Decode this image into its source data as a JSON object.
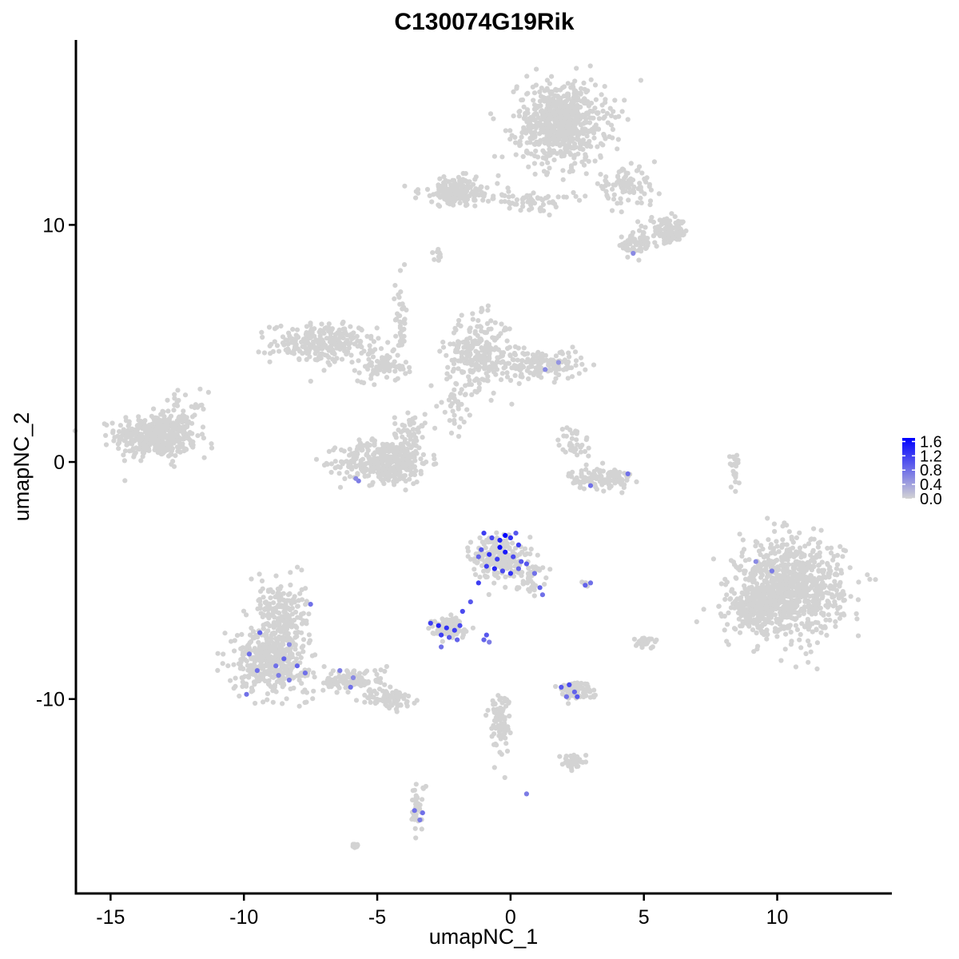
{
  "chart_data": {
    "type": "scatter",
    "title": "C130074G19Rik",
    "xlabel": "umapNC_1",
    "ylabel": "umapNC_2",
    "xlim": [
      -16.3,
      14.3
    ],
    "ylim": [
      -18.2,
      17.8
    ],
    "xticks": [
      -15,
      -10,
      -5,
      0,
      5,
      10
    ],
    "yticks": [
      -10,
      0,
      10
    ],
    "grid": false,
    "colors": {
      "low": "#d3d3d3",
      "high": "#0000ff",
      "axis": "#000000"
    },
    "color_scale": {
      "name": "",
      "min": 0.0,
      "max": 1.7,
      "labels": [
        "1.6",
        "1.2",
        "0.8",
        "0.4",
        "0.0"
      ],
      "values": [
        1.6,
        1.2,
        0.8,
        0.4,
        0.0
      ],
      "position": "right"
    },
    "clusters": [
      {
        "cx": -13.3,
        "cy": 1.1,
        "sx": 1.0,
        "sy": 0.6,
        "n": 420
      },
      {
        "cx": -12.3,
        "cy": 1.6,
        "sx": 0.6,
        "sy": 0.9,
        "n": 60
      },
      {
        "cx": -7.0,
        "cy": 5.0,
        "sx": 1.3,
        "sy": 0.55,
        "n": 260
      },
      {
        "cx": -4.8,
        "cy": 4.0,
        "sx": 0.6,
        "sy": 0.4,
        "n": 70
      },
      {
        "cx": -4.7,
        "cy": 0.0,
        "sx": 1.1,
        "sy": 0.6,
        "n": 380
      },
      {
        "cx": -3.8,
        "cy": 1.2,
        "sx": 0.4,
        "sy": 0.7,
        "n": 60
      },
      {
        "cx": -4.1,
        "cy": 6.0,
        "sx": 0.15,
        "sy": 1.2,
        "n": 40
      },
      {
        "cx": -1.2,
        "cy": 4.6,
        "sx": 0.8,
        "sy": 1.0,
        "n": 260
      },
      {
        "cx": 1.2,
        "cy": 4.1,
        "sx": 1.0,
        "sy": 0.4,
        "n": 140
      },
      {
        "cx": -2.1,
        "cy": 2.5,
        "sx": 0.3,
        "sy": 0.8,
        "n": 40
      },
      {
        "cx": 2.4,
        "cy": 0.8,
        "sx": 0.4,
        "sy": 0.5,
        "n": 40
      },
      {
        "cx": 3.4,
        "cy": -0.7,
        "sx": 0.8,
        "sy": 0.3,
        "n": 120
      },
      {
        "cx": 1.9,
        "cy": 14.3,
        "sx": 1.1,
        "sy": 1.1,
        "n": 700
      },
      {
        "cx": -1.9,
        "cy": 11.4,
        "sx": 1.0,
        "sy": 0.4,
        "n": 170
      },
      {
        "cx": 0.8,
        "cy": 11.0,
        "sx": 1.0,
        "sy": 0.25,
        "n": 60
      },
      {
        "cx": 4.3,
        "cy": 11.6,
        "sx": 0.8,
        "sy": 0.5,
        "n": 90
      },
      {
        "cx": 5.9,
        "cy": 9.7,
        "sx": 0.5,
        "sy": 0.35,
        "n": 110
      },
      {
        "cx": 4.7,
        "cy": 9.2,
        "sx": 0.4,
        "sy": 0.35,
        "n": 60
      },
      {
        "cx": -2.7,
        "cy": 8.7,
        "sx": 0.12,
        "sy": 0.15,
        "n": 10
      },
      {
        "cx": 10.5,
        "cy": -5.3,
        "sx": 1.3,
        "sy": 1.3,
        "n": 900
      },
      {
        "cx": 9.2,
        "cy": -6.2,
        "sx": 0.6,
        "sy": 0.6,
        "n": 200
      },
      {
        "cx": 8.4,
        "cy": -0.3,
        "sx": 0.12,
        "sy": 0.5,
        "n": 20
      },
      {
        "cx": -9.0,
        "cy": -8.3,
        "sx": 0.9,
        "sy": 0.9,
        "n": 430
      },
      {
        "cx": -8.6,
        "cy": -6.3,
        "sx": 0.6,
        "sy": 0.9,
        "n": 180
      },
      {
        "cx": -6.0,
        "cy": -9.2,
        "sx": 0.9,
        "sy": 0.35,
        "n": 120
      },
      {
        "cx": -4.5,
        "cy": -10.0,
        "sx": 0.6,
        "sy": 0.3,
        "n": 80
      },
      {
        "cx": -0.5,
        "cy": -4.0,
        "sx": 0.6,
        "sy": 0.6,
        "n": 200
      },
      {
        "cx": 0.7,
        "cy": -4.8,
        "sx": 0.35,
        "sy": 0.5,
        "n": 50
      },
      {
        "cx": -2.3,
        "cy": -7.0,
        "sx": 0.45,
        "sy": 0.25,
        "n": 110
      },
      {
        "cx": 2.4,
        "cy": -9.6,
        "sx": 0.45,
        "sy": 0.25,
        "n": 80
      },
      {
        "cx": -0.4,
        "cy": -11.0,
        "sx": 0.25,
        "sy": 0.9,
        "n": 90
      },
      {
        "cx": 2.4,
        "cy": -12.6,
        "sx": 0.3,
        "sy": 0.2,
        "n": 35
      },
      {
        "cx": -3.5,
        "cy": -14.6,
        "sx": 0.2,
        "sy": 0.7,
        "n": 40
      },
      {
        "cx": 5.0,
        "cy": -7.6,
        "sx": 0.3,
        "sy": 0.15,
        "n": 30
      },
      {
        "cx": -5.9,
        "cy": -16.2,
        "sx": 0.12,
        "sy": 0.1,
        "n": 8
      },
      {
        "cx": 2.8,
        "cy": -5.1,
        "sx": 0.1,
        "sy": 0.08,
        "n": 6
      }
    ],
    "expressing_points": [
      {
        "x": -1.0,
        "y": -3.0,
        "v": 1.2
      },
      {
        "x": -0.7,
        "y": -3.2,
        "v": 1.1
      },
      {
        "x": -0.4,
        "y": -3.3,
        "v": 1.4
      },
      {
        "x": -0.2,
        "y": -3.1,
        "v": 1.7
      },
      {
        "x": 0.0,
        "y": -3.2,
        "v": 1.3
      },
      {
        "x": 0.3,
        "y": -3.5,
        "v": 1.2
      },
      {
        "x": -1.1,
        "y": -3.7,
        "v": 1.0
      },
      {
        "x": -0.8,
        "y": -3.9,
        "v": 1.3
      },
      {
        "x": -0.5,
        "y": -4.1,
        "v": 1.2
      },
      {
        "x": -0.2,
        "y": -3.8,
        "v": 1.5
      },
      {
        "x": 0.1,
        "y": -4.0,
        "v": 1.1
      },
      {
        "x": 0.4,
        "y": -4.2,
        "v": 1.0
      },
      {
        "x": -0.9,
        "y": -4.4,
        "v": 1.2
      },
      {
        "x": -0.6,
        "y": -4.5,
        "v": 1.4
      },
      {
        "x": -0.3,
        "y": -4.6,
        "v": 1.1
      },
      {
        "x": 0.0,
        "y": -4.7,
        "v": 1.3
      },
      {
        "x": 0.3,
        "y": -4.5,
        "v": 0.9
      },
      {
        "x": 0.6,
        "y": -4.3,
        "v": 1.0
      },
      {
        "x": 0.9,
        "y": -4.7,
        "v": 0.8
      },
      {
        "x": 1.1,
        "y": -5.3,
        "v": 0.9
      },
      {
        "x": 1.2,
        "y": -5.6,
        "v": 0.8
      },
      {
        "x": -0.4,
        "y": -3.6,
        "v": 1.6
      },
      {
        "x": -1.2,
        "y": -4.0,
        "v": 0.9
      },
      {
        "x": 0.2,
        "y": -3.0,
        "v": 1.0
      },
      {
        "x": -1.2,
        "y": -5.1,
        "v": 1.2
      },
      {
        "x": -1.5,
        "y": -5.9,
        "v": 1.0
      },
      {
        "x": -1.8,
        "y": -6.3,
        "v": 1.1
      },
      {
        "x": -3.0,
        "y": -6.8,
        "v": 1.2
      },
      {
        "x": -2.7,
        "y": -6.9,
        "v": 1.4
      },
      {
        "x": -2.4,
        "y": -7.0,
        "v": 1.3
      },
      {
        "x": -2.1,
        "y": -7.1,
        "v": 1.2
      },
      {
        "x": -1.9,
        "y": -6.9,
        "v": 1.1
      },
      {
        "x": -2.6,
        "y": -7.3,
        "v": 1.2
      },
      {
        "x": -2.3,
        "y": -7.4,
        "v": 1.0
      },
      {
        "x": -2.0,
        "y": -7.5,
        "v": 0.9
      },
      {
        "x": -2.6,
        "y": -7.8,
        "v": 0.8
      },
      {
        "x": -1.0,
        "y": -7.5,
        "v": 0.9
      },
      {
        "x": -0.9,
        "y": -7.3,
        "v": 1.0
      },
      {
        "x": -0.8,
        "y": -7.6,
        "v": 0.7
      },
      {
        "x": 2.8,
        "y": -5.2,
        "v": 0.9
      },
      {
        "x": 3.0,
        "y": -5.1,
        "v": 0.8
      },
      {
        "x": 1.9,
        "y": -9.5,
        "v": 1.0
      },
      {
        "x": 2.2,
        "y": -9.4,
        "v": 1.1
      },
      {
        "x": 2.4,
        "y": -9.7,
        "v": 0.9
      },
      {
        "x": 2.1,
        "y": -9.9,
        "v": 0.8
      },
      {
        "x": 2.5,
        "y": -9.9,
        "v": 1.0
      },
      {
        "x": -9.8,
        "y": -8.1,
        "v": 0.8
      },
      {
        "x": -9.4,
        "y": -7.2,
        "v": 0.9
      },
      {
        "x": -8.8,
        "y": -8.6,
        "v": 0.8
      },
      {
        "x": -8.5,
        "y": -8.3,
        "v": 0.9
      },
      {
        "x": -8.3,
        "y": -9.2,
        "v": 0.7
      },
      {
        "x": -9.5,
        "y": -8.8,
        "v": 0.8
      },
      {
        "x": -8.0,
        "y": -8.6,
        "v": 0.9
      },
      {
        "x": -7.7,
        "y": -8.9,
        "v": 0.8
      },
      {
        "x": -8.7,
        "y": -9.0,
        "v": 0.7
      },
      {
        "x": -9.9,
        "y": -9.8,
        "v": 0.8
      },
      {
        "x": -8.3,
        "y": -7.7,
        "v": 0.6
      },
      {
        "x": -7.5,
        "y": -6.0,
        "v": 0.8
      },
      {
        "x": -6.4,
        "y": -8.8,
        "v": 0.7
      },
      {
        "x": -5.9,
        "y": -9.1,
        "v": 0.6
      },
      {
        "x": -6.0,
        "y": -9.5,
        "v": 0.8
      },
      {
        "x": -3.6,
        "y": -14.7,
        "v": 0.8
      },
      {
        "x": -3.4,
        "y": -15.1,
        "v": 0.7
      },
      {
        "x": -3.3,
        "y": -14.8,
        "v": 0.8
      },
      {
        "x": -5.7,
        "y": -0.8,
        "v": 0.7
      },
      {
        "x": -5.8,
        "y": -0.7,
        "v": 0.6
      },
      {
        "x": 1.3,
        "y": 3.9,
        "v": 0.6
      },
      {
        "x": 1.8,
        "y": 4.2,
        "v": 0.5
      },
      {
        "x": 3.0,
        "y": -1.0,
        "v": 0.8
      },
      {
        "x": 4.4,
        "y": -0.5,
        "v": 0.8
      },
      {
        "x": 4.6,
        "y": 8.8,
        "v": 0.6
      },
      {
        "x": 9.2,
        "y": -4.2,
        "v": 0.6
      },
      {
        "x": 9.8,
        "y": -4.6,
        "v": 0.7
      },
      {
        "x": 0.6,
        "y": -14.0,
        "v": 0.7
      }
    ]
  }
}
